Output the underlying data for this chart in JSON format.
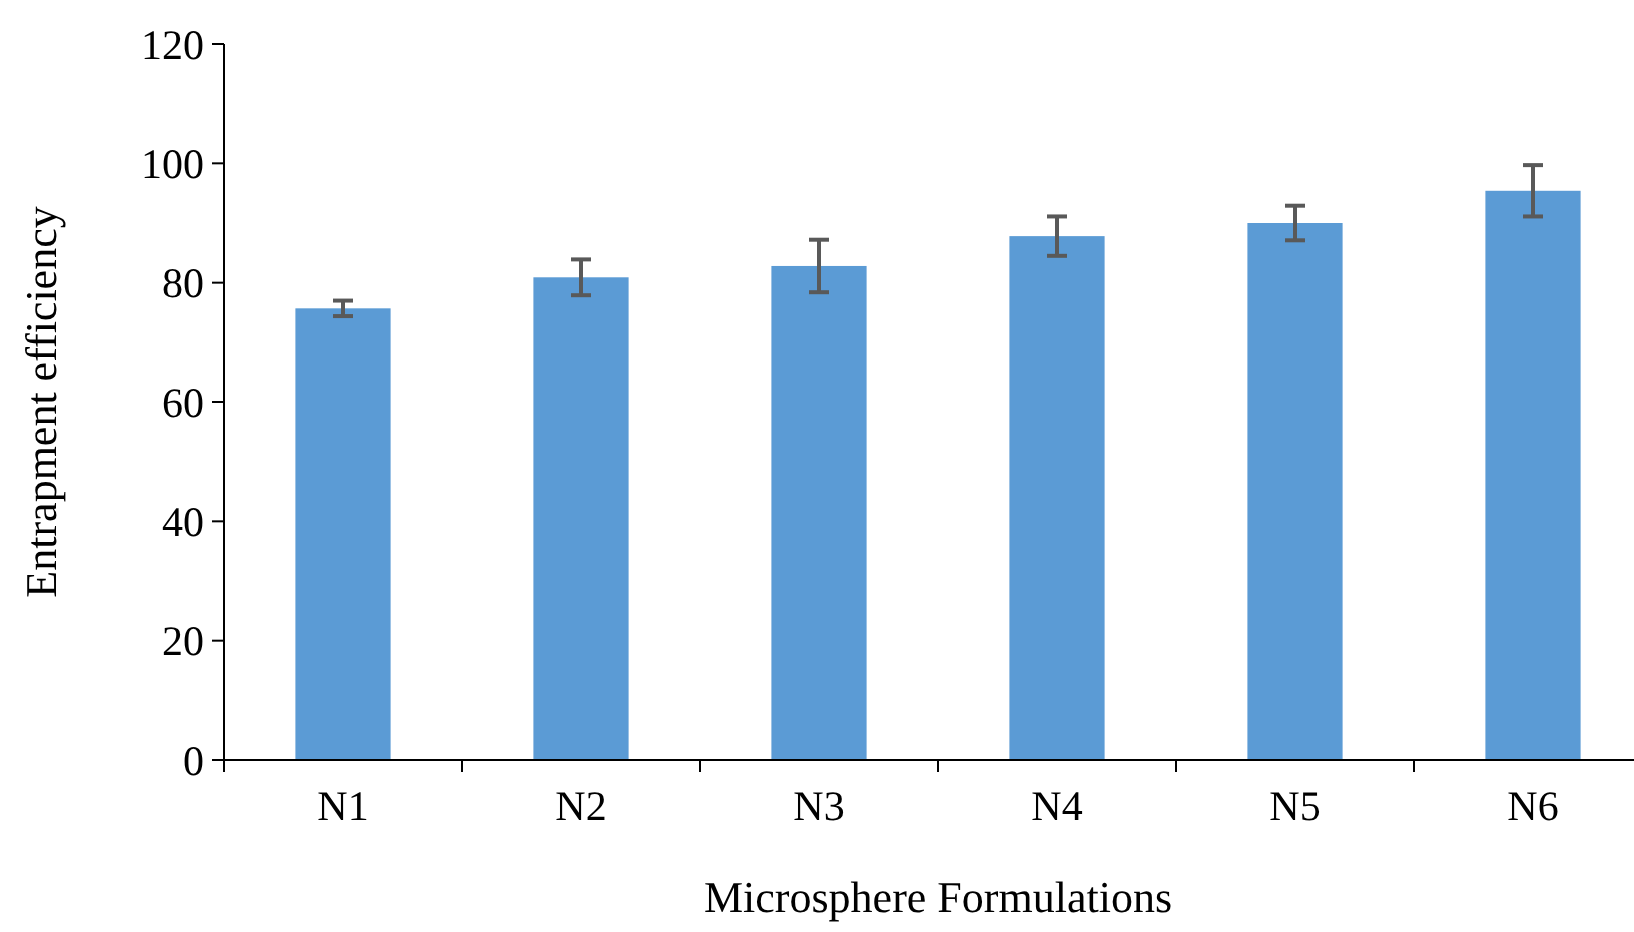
{
  "chart_data": {
    "type": "bar",
    "xlabel": "Microsphere Formulations",
    "ylabel": "Entrapment efficiency",
    "categories": [
      "N1",
      "N2",
      "N3",
      "N4",
      "N5",
      "N6"
    ],
    "values": [
      75.7,
      80.9,
      82.8,
      87.8,
      90.0,
      95.4
    ],
    "errors": [
      1.3,
      3.0,
      4.4,
      3.3,
      2.9,
      4.3
    ],
    "color": "#5b9bd5",
    "ylim": [
      0,
      120
    ],
    "yticks": [
      0,
      20,
      40,
      60,
      80,
      100,
      120
    ],
    "grid": false
  }
}
